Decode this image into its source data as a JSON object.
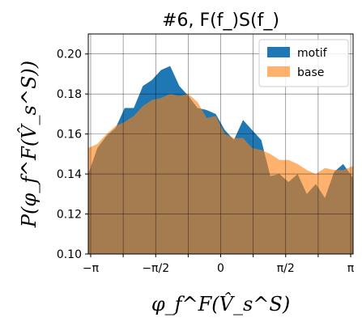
{
  "chart_data": {
    "type": "area",
    "title": "#6, F(f_)S(f_)",
    "xlabel": "φ_f^F(V̂_s^S)",
    "ylabel": "P(φ_f^F(V̂_s^S))",
    "xlim": [
      -3.2,
      3.2
    ],
    "ylim": [
      0.1,
      0.21
    ],
    "x_ticks": [
      {
        "value": -3.1416,
        "label": "−π"
      },
      {
        "value": -2.3562,
        "label": ""
      },
      {
        "value": -1.5708,
        "label": "−π/2"
      },
      {
        "value": -0.7854,
        "label": ""
      },
      {
        "value": 0,
        "label": "0"
      },
      {
        "value": 0.7854,
        "label": ""
      },
      {
        "value": 1.5708,
        "label": "π/2"
      },
      {
        "value": 2.3562,
        "label": ""
      },
      {
        "value": 3.1416,
        "label": "π"
      }
    ],
    "y_ticks": [
      {
        "value": 0.1,
        "label": "0.10"
      },
      {
        "value": 0.12,
        "label": "0.12"
      },
      {
        "value": 0.14,
        "label": "0.14"
      },
      {
        "value": 0.16,
        "label": "0.16"
      },
      {
        "value": 0.18,
        "label": "0.18"
      },
      {
        "value": 0.2,
        "label": "0.20"
      }
    ],
    "grid": true,
    "legend_position": "top-right",
    "x": [
      -3.2,
      -2.98,
      -2.76,
      -2.54,
      -2.32,
      -2.1,
      -1.88,
      -1.66,
      -1.44,
      -1.22,
      -1.0,
      -0.78,
      -0.56,
      -0.34,
      -0.12,
      0.1,
      0.32,
      0.54,
      0.76,
      0.98,
      1.2,
      1.42,
      1.64,
      1.86,
      2.08,
      2.3,
      2.52,
      2.74,
      2.96,
      3.2
    ],
    "series": [
      {
        "name": "motif",
        "color": "#1f77b4",
        "values": [
          0.14,
          0.153,
          0.159,
          0.163,
          0.173,
          0.173,
          0.184,
          0.187,
          0.192,
          0.194,
          0.184,
          0.179,
          0.173,
          0.172,
          0.17,
          0.162,
          0.157,
          0.167,
          0.162,
          0.157,
          0.139,
          0.14,
          0.136,
          0.14,
          0.13,
          0.135,
          0.128,
          0.141,
          0.145,
          0.138
        ]
      },
      {
        "name": "base",
        "color": "#ff7f0e",
        "alpha": 0.6,
        "values": [
          0.153,
          0.155,
          0.16,
          0.164,
          0.166,
          0.169,
          0.174,
          0.177,
          0.178,
          0.18,
          0.179,
          0.18,
          0.176,
          0.168,
          0.169,
          0.16,
          0.158,
          0.158,
          0.153,
          0.152,
          0.15,
          0.147,
          0.147,
          0.145,
          0.142,
          0.14,
          0.143,
          0.142,
          0.142,
          0.144
        ]
      }
    ]
  }
}
